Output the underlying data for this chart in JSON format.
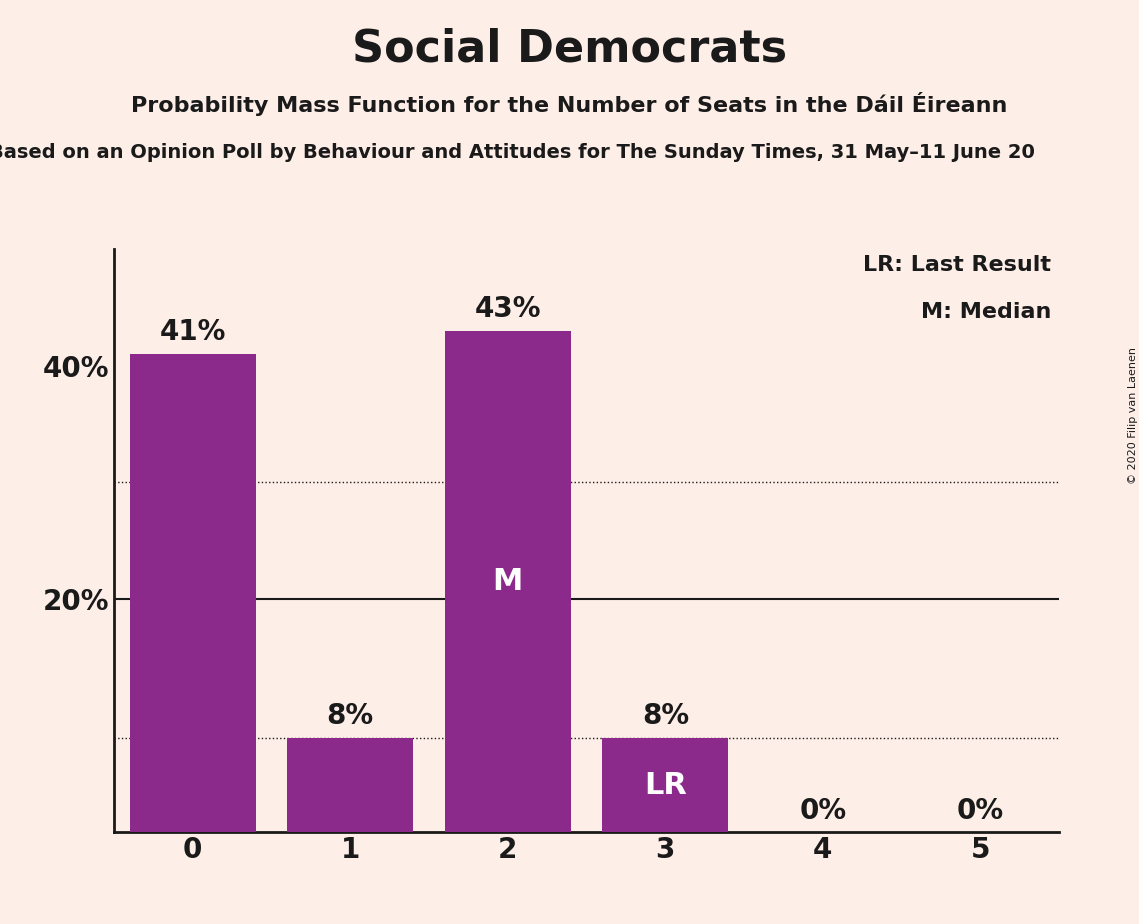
{
  "title": "Social Democrats",
  "subtitle": "Probability Mass Function for the Number of Seats in the Dáil Éireann",
  "source_line": "sed on an Opinion Poll by Behaviour and Attitudes for The Sunday Times, 31 May–11 June 20",
  "copyright": "© 2020 Filip van Laenen",
  "categories": [
    0,
    1,
    2,
    3,
    4,
    5
  ],
  "values": [
    0.41,
    0.08,
    0.43,
    0.08,
    0.0,
    0.0
  ],
  "bar_color": "#8B2A8B",
  "background_color": "#FDEEE8",
  "text_color": "#1a1a1a",
  "bar_labels": [
    "41%",
    "8%",
    "43%",
    "8%",
    "0%",
    "0%"
  ],
  "median_bar": 2,
  "lr_bar": 3,
  "legend_lr": "LR: Last Result",
  "legend_m": "M: Median",
  "ylim": [
    0,
    0.5
  ],
  "title_fontsize": 32,
  "subtitle_fontsize": 16,
  "source_fontsize": 14,
  "bar_label_fontsize": 20,
  "ytick_fontsize": 20,
  "xtick_fontsize": 20,
  "legend_fontsize": 16,
  "inbar_label_fontsize": 22
}
